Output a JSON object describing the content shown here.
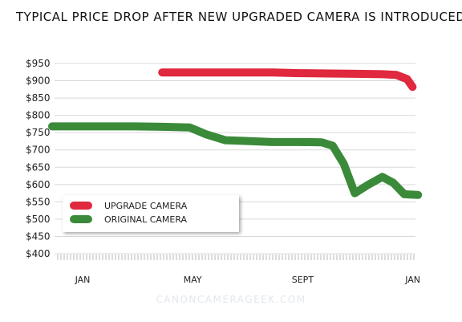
{
  "chart_data": {
    "type": "line",
    "title": "TYPICAL PRICE DROP AFTER NEW UPGRADED CAMERA IS INTRODUCED",
    "ylim": [
      400,
      950
    ],
    "y_ticks": [
      400,
      450,
      500,
      550,
      600,
      650,
      700,
      750,
      800,
      850,
      900,
      950
    ],
    "y_tick_labels": [
      "$400",
      "$450",
      "$500",
      "$550",
      "$600",
      "$650",
      "$700",
      "$750",
      "$800",
      "$850",
      "$900",
      "$950"
    ],
    "x_ticks": [
      1,
      5,
      9,
      13
    ],
    "x_tick_labels": [
      "JAN",
      "MAY",
      "SEPT",
      "JAN"
    ],
    "xlim": [
      0,
      14.3
    ],
    "grid": true,
    "legend": "bottom-left",
    "series": [
      {
        "name": "UPGRADE CAMERA",
        "color": "#e0283e",
        "x": [
          5.0,
          6.0,
          7.0,
          8.0,
          9.0,
          10.0,
          11.0,
          12.0,
          13.0,
          13.5,
          13.9,
          14.1
        ],
        "y": [
          924,
          924,
          924,
          924,
          924,
          922,
          921,
          920,
          919,
          917,
          905,
          882
        ]
      },
      {
        "name": "ORIGINAL CAMERA",
        "color": "#3a8a3a",
        "x": [
          1.0,
          2.0,
          3.0,
          4.0,
          5.0,
          6.0,
          6.6,
          7.3,
          8.0,
          9.0,
          10.0,
          10.8,
          11.2,
          11.6,
          12.0,
          12.5,
          13.0,
          13.4,
          13.8,
          14.3
        ],
        "y": [
          768,
          768,
          768,
          768,
          767,
          765,
          745,
          728,
          726,
          723,
          723,
          722,
          712,
          660,
          575,
          600,
          622,
          605,
          572,
          570
        ]
      }
    ]
  },
  "watermark": "CANONCAMERAGEEK.COM"
}
